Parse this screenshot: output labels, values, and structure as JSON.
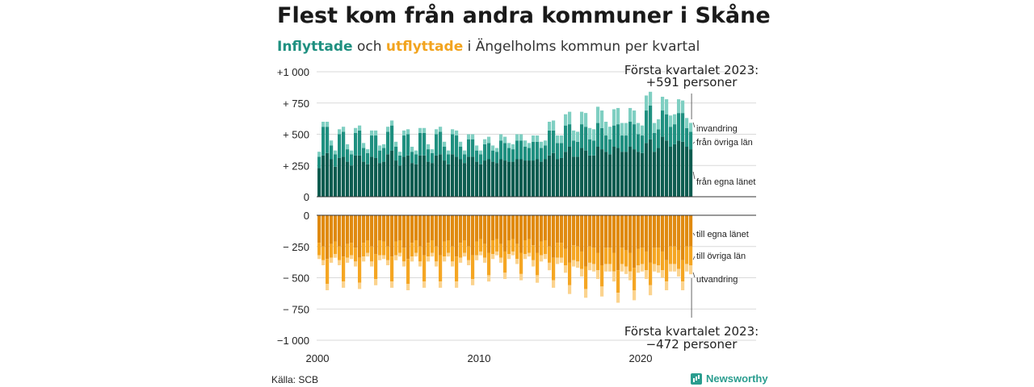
{
  "title": "Flest kom från andra kommuner i Skåne",
  "subtitle": {
    "in_word": "Inflyttade",
    "mid": " och ",
    "out_word": "utflyttade",
    "rest": " i Ängelholms kommun per kvartal"
  },
  "source": "Källa: SCB",
  "brand": "Newsworthy",
  "colors": {
    "egna_in": "#0d5c50",
    "ovriga_in": "#1f9080",
    "invandring": "#7fcfc2",
    "egna_out": "#e08a10",
    "ovriga_out": "#f5a623",
    "utvandring": "#fbd38e",
    "grid": "#d9d9d9",
    "axis": "#333333"
  },
  "annotations": {
    "top_line1": "Första kvartalet 2023:",
    "top_line2": "+591 personer",
    "bottom_line1": "Första kvartalet 2023:",
    "bottom_line2": "−472 personer"
  },
  "chart_data": {
    "type": "bar",
    "stacked": true,
    "diverging": true,
    "x_start": "2000 Q1",
    "x_end": "2023 Q1",
    "x_ticks": [
      "2000",
      "2010",
      "2020"
    ],
    "y_ticks_in": [
      "0",
      "+  250",
      "+  500",
      "+  750",
      "+1 000"
    ],
    "y_ticks_out": [
      "0",
      "−  250",
      "−  500",
      "−  750",
      "−1 000"
    ],
    "ylim": [
      -1000,
      1000
    ],
    "grid": true,
    "series_in": [
      {
        "name": "från egna länet",
        "values": [
          230,
          330,
          350,
          300,
          240,
          310,
          320,
          280,
          250,
          330,
          330,
          280,
          260,
          320,
          310,
          270,
          280,
          340,
          370,
          290,
          250,
          320,
          330,
          270,
          260,
          330,
          330,
          280,
          270,
          330,
          340,
          290,
          260,
          340,
          320,
          300,
          270,
          320,
          320,
          280,
          260,
          290,
          300,
          280,
          270,
          300,
          290,
          280,
          280,
          300,
          300,
          290,
          290,
          290,
          300,
          280,
          300,
          330,
          350,
          300,
          310,
          360,
          400,
          320,
          320,
          390,
          370,
          330,
          330,
          400,
          380,
          360,
          340,
          400,
          390,
          360,
          360,
          400,
          380,
          360,
          350,
          430,
          460,
          360,
          390,
          480,
          450,
          400,
          420,
          450,
          440,
          400,
          380
        ]
      },
      {
        "name": "från övriga län",
        "values": [
          90,
          230,
          210,
          110,
          100,
          190,
          200,
          100,
          90,
          180,
          200,
          110,
          90,
          170,
          180,
          100,
          110,
          180,
          200,
          110,
          80,
          170,
          170,
          90,
          80,
          180,
          180,
          100,
          80,
          170,
          180,
          110,
          80,
          160,
          170,
          100,
          70,
          140,
          140,
          90,
          80,
          130,
          130,
          90,
          90,
          150,
          140,
          110,
          100,
          150,
          150,
          110,
          100,
          150,
          140,
          110,
          110,
          200,
          180,
          130,
          120,
          210,
          180,
          130,
          120,
          190,
          190,
          130,
          120,
          190,
          170,
          130,
          120,
          170,
          190,
          130,
          130,
          200,
          200,
          140,
          140,
          260,
          270,
          150,
          150,
          210,
          210,
          160,
          160,
          220,
          230,
          150,
          140
        ]
      },
      {
        "name": "invandring",
        "values": [
          40,
          40,
          40,
          40,
          30,
          40,
          40,
          40,
          30,
          40,
          40,
          40,
          30,
          40,
          40,
          40,
          30,
          40,
          40,
          40,
          30,
          40,
          40,
          40,
          30,
          40,
          40,
          40,
          30,
          40,
          40,
          40,
          30,
          40,
          40,
          40,
          30,
          40,
          40,
          40,
          30,
          40,
          50,
          40,
          30,
          50,
          50,
          40,
          40,
          50,
          50,
          50,
          40,
          50,
          50,
          50,
          40,
          70,
          80,
          60,
          60,
          90,
          100,
          80,
          80,
          100,
          110,
          90,
          90,
          130,
          140,
          110,
          100,
          130,
          130,
          100,
          100,
          110,
          110,
          90,
          80,
          120,
          110,
          80,
          80,
          110,
          120,
          90,
          80,
          110,
          100,
          80,
          71
        ]
      }
    ],
    "series_out": [
      {
        "name": "till egna länet",
        "values": [
          220,
          250,
          350,
          230,
          210,
          250,
          330,
          230,
          220,
          260,
          340,
          220,
          200,
          250,
          310,
          200,
          210,
          250,
          330,
          210,
          200,
          260,
          350,
          220,
          200,
          250,
          320,
          220,
          200,
          250,
          320,
          210,
          200,
          250,
          330,
          220,
          200,
          250,
          320,
          210,
          190,
          230,
          300,
          200,
          190,
          230,
          290,
          200,
          190,
          230,
          300,
          200,
          190,
          240,
          300,
          210,
          200,
          250,
          340,
          220,
          220,
          270,
          380,
          240,
          250,
          290,
          410,
          250,
          260,
          300,
          400,
          260,
          260,
          300,
          440,
          260,
          280,
          300,
          420,
          270,
          260,
          290,
          380,
          260,
          260,
          290,
          360,
          250,
          250,
          280,
          360,
          250,
          250
        ]
      },
      {
        "name": "till övriga län",
        "values": [
          100,
          110,
          200,
          110,
          100,
          110,
          200,
          110,
          100,
          110,
          200,
          110,
          100,
          120,
          200,
          120,
          110,
          110,
          200,
          110,
          100,
          110,
          200,
          110,
          100,
          120,
          210,
          110,
          100,
          120,
          210,
          120,
          100,
          120,
          200,
          120,
          100,
          110,
          190,
          110,
          100,
          110,
          180,
          110,
          100,
          110,
          170,
          110,
          100,
          120,
          170,
          110,
          110,
          120,
          180,
          110,
          110,
          130,
          180,
          120,
          120,
          130,
          180,
          120,
          120,
          140,
          180,
          130,
          130,
          140,
          170,
          130,
          130,
          150,
          180,
          130,
          130,
          150,
          180,
          130,
          130,
          150,
          180,
          130,
          140,
          150,
          170,
          140,
          140,
          150,
          170,
          140,
          150
        ]
      },
      {
        "name": "utvandring",
        "values": [
          30,
          40,
          50,
          40,
          30,
          40,
          50,
          40,
          30,
          40,
          50,
          40,
          30,
          40,
          50,
          40,
          30,
          40,
          50,
          40,
          30,
          40,
          50,
          40,
          30,
          40,
          50,
          40,
          30,
          40,
          50,
          40,
          30,
          40,
          50,
          40,
          30,
          40,
          50,
          40,
          30,
          40,
          50,
          40,
          30,
          40,
          50,
          40,
          30,
          40,
          50,
          40,
          30,
          50,
          60,
          50,
          40,
          60,
          60,
          50,
          40,
          60,
          70,
          50,
          50,
          60,
          70,
          60,
          60,
          70,
          80,
          60,
          60,
          80,
          80,
          60,
          60,
          70,
          80,
          60,
          60,
          70,
          80,
          60,
          60,
          60,
          70,
          60,
          60,
          60,
          70,
          60,
          72
        ]
      }
    ],
    "series_labels_in": [
      "invandring",
      "från övriga län",
      "från egna länet"
    ],
    "series_labels_out": [
      "till egna länet",
      "till övriga län",
      "utvandring"
    ]
  }
}
